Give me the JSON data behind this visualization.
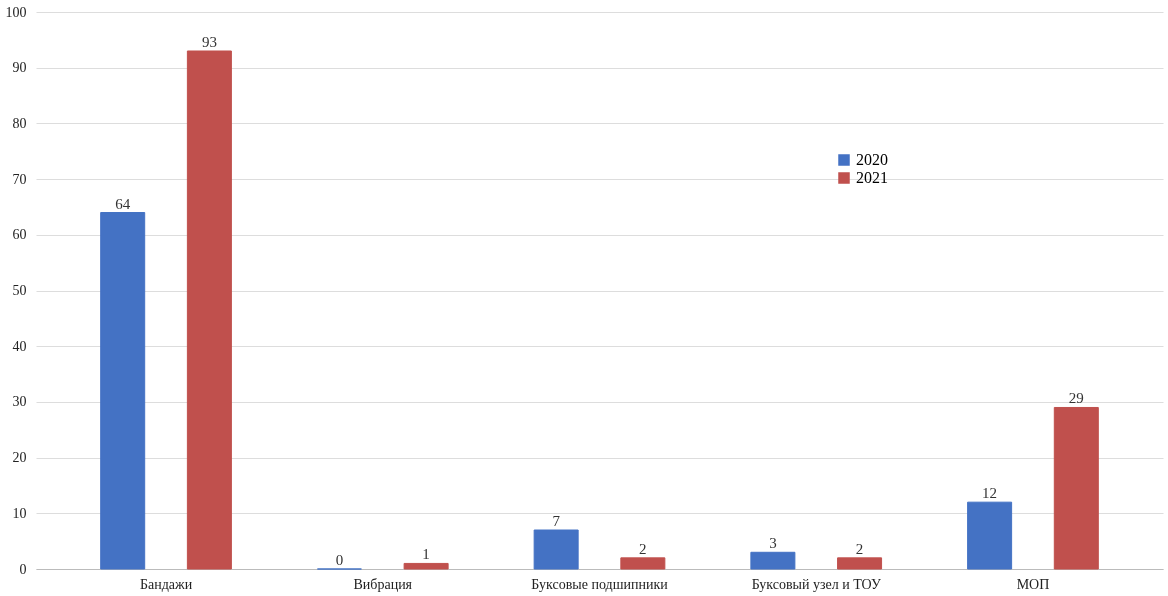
{
  "chart_data": {
    "type": "bar",
    "categories": [
      "Бандажи",
      "Вибрация",
      "Буксовые подшипники",
      "Буксовый узел и ТОУ",
      "МОП"
    ],
    "series": [
      {
        "name": "2020",
        "color": "#4472c4",
        "values": [
          64,
          0,
          7,
          3,
          12
        ]
      },
      {
        "name": "2021",
        "color": "#c0504d",
        "values": [
          93,
          1,
          2,
          2,
          29
        ]
      }
    ],
    "ylim": [
      0,
      100
    ],
    "yticks": [
      0,
      10,
      20,
      30,
      40,
      50,
      60,
      70,
      80,
      90,
      100
    ],
    "grid": "y",
    "legend": "top right",
    "data_labels": true
  }
}
